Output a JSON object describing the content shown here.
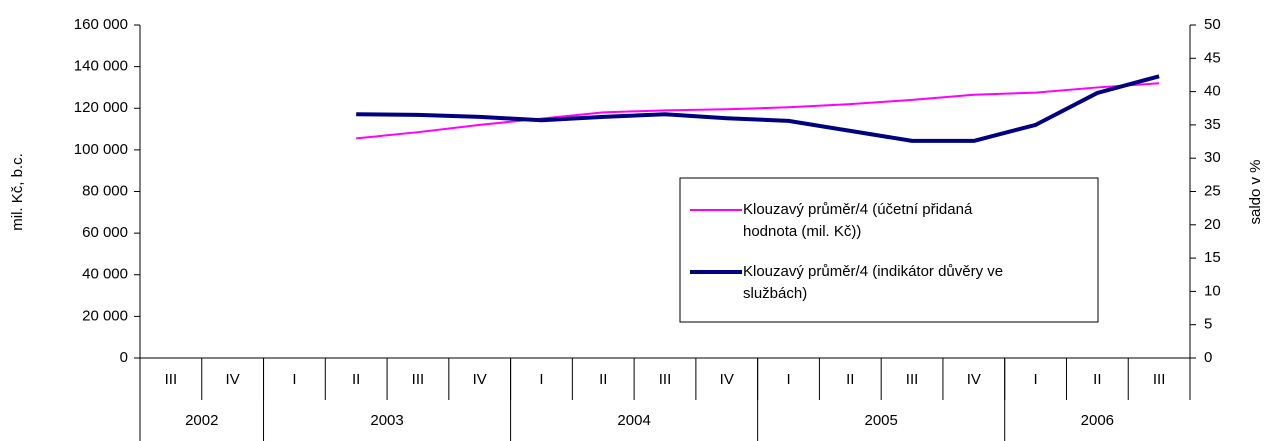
{
  "chart_data": {
    "type": "line",
    "categories": [
      "III",
      "IV",
      "I",
      "II",
      "III",
      "IV",
      "I",
      "II",
      "III",
      "IV",
      "I",
      "II",
      "III",
      "IV",
      "I",
      "II",
      "III"
    ],
    "years": [
      "2002",
      "2003",
      "2004",
      "2005",
      "2006"
    ],
    "ylabel": "mil. Kč, b.c.",
    "y2label": "saldo v %",
    "ylim": [
      0,
      160000
    ],
    "yticks": [
      {
        "value": 0,
        "label": "0"
      },
      {
        "value": 20000,
        "label": "20 000"
      },
      {
        "value": 40000,
        "label": "40 000"
      },
      {
        "value": 60000,
        "label": "60 000"
      },
      {
        "value": 80000,
        "label": "80 000"
      },
      {
        "value": 100000,
        "label": "100 000"
      },
      {
        "value": 120000,
        "label": "120 000"
      },
      {
        "value": 140000,
        "label": "140 000"
      },
      {
        "value": 160000,
        "label": "160 000"
      }
    ],
    "y2lim": [
      0,
      50
    ],
    "y2ticks": [
      0,
      5,
      10,
      15,
      20,
      25,
      30,
      35,
      40,
      45,
      50
    ],
    "legend": "right",
    "series": [
      {
        "name": "Klouzavý průměr/4 (účetní přidaná hodnota (mil. Kč))",
        "color": "#ff00ff",
        "width": 2,
        "values": [
          null,
          null,
          null,
          105500,
          108500,
          112000,
          115000,
          118000,
          119000,
          119500,
          120500,
          122000,
          124000,
          126500,
          127500,
          130000,
          132000
        ]
      },
      {
        "name": "Klouzavý průměr/4 (indikátor důvěry ve službách)",
        "color": "#000080",
        "width": 4,
        "axis": "y2",
        "values": [
          null,
          null,
          null,
          36.6,
          36.5,
          36.2,
          35.7,
          36.2,
          36.6,
          36.0,
          35.6,
          34.1,
          32.6,
          32.6,
          35.0,
          39.8,
          42.3
        ]
      }
    ]
  }
}
